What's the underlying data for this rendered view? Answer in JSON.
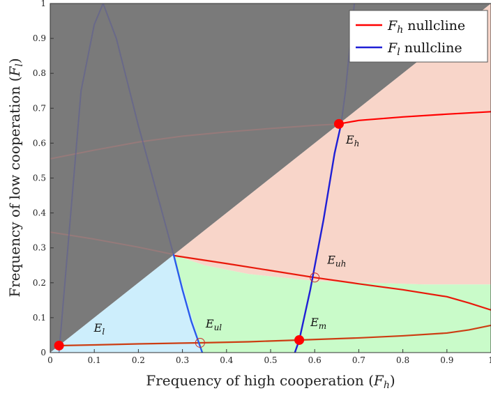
{
  "chart_data": {
    "type": "line",
    "xlabel": "Frequency of high cooperation (F_h)",
    "ylabel": "Frequency of low cooperation (F_l)",
    "xlim": [
      0,
      1
    ],
    "ylim": [
      0,
      1
    ],
    "xticks": [
      "0",
      "0.1",
      "0.2",
      "0.3",
      "0.4",
      "0.5",
      "0.6",
      "0.7",
      "0.8",
      "0.9",
      "1"
    ],
    "yticks": [
      "0",
      "0.1",
      "0.2",
      "0.3",
      "0.4",
      "0.5",
      "0.6",
      "0.7",
      "0.8",
      "0.9",
      "1"
    ],
    "grid": false,
    "legend_position": "top-right",
    "legend": [
      {
        "label": "F_h nullcline",
        "color": "#ff0000"
      },
      {
        "label": "F_l nullcline",
        "color": "#1f1fd6"
      }
    ],
    "regions": [
      {
        "color": "#7a7a7a",
        "points": [
          [
            0,
            0
          ],
          [
            0,
            1
          ],
          [
            1,
            1
          ]
        ]
      },
      {
        "color": "#f8d5c9",
        "points": [
          [
            0.28,
            0.28
          ],
          [
            1,
            1
          ],
          [
            1,
            0.195
          ],
          [
            0.85,
            0.195
          ],
          [
            0.6,
            0.205
          ],
          [
            0.45,
            0.225
          ],
          [
            0.35,
            0.25
          ]
        ]
      },
      {
        "color": "#cdeefc",
        "points": [
          [
            0,
            0
          ],
          [
            0.28,
            0.28
          ],
          [
            0.345,
            0
          ]
        ]
      },
      {
        "color": "#c9fbc9",
        "points": [
          [
            0.28,
            0.28
          ],
          [
            0.35,
            0.25
          ],
          [
            0.45,
            0.225
          ],
          [
            0.6,
            0.205
          ],
          [
            0.85,
            0.195
          ],
          [
            1,
            0.195
          ],
          [
            1,
            0
          ],
          [
            0.345,
            0
          ]
        ]
      }
    ],
    "series": [
      {
        "role": "Fh-upper-hidden",
        "color": "#a87a7a",
        "opacity": 0.6,
        "width": 2,
        "x": [
          0,
          0.1,
          0.2,
          0.3,
          0.4,
          0.5,
          0.6,
          0.66
        ],
        "y": [
          0.555,
          0.58,
          0.603,
          0.62,
          0.632,
          0.642,
          0.651,
          0.655
        ]
      },
      {
        "role": "Fh-upper",
        "color": "#ff0000",
        "opacity": 1,
        "width": 2.2,
        "x": [
          0.655,
          0.7,
          0.8,
          0.9,
          1.0
        ],
        "y": [
          0.655,
          0.665,
          0.675,
          0.683,
          0.69
        ]
      },
      {
        "role": "Fh-middle-hidden",
        "color": "#a87a7a",
        "opacity": 0.6,
        "width": 2,
        "x": [
          0,
          0.1,
          0.2,
          0.28
        ],
        "y": [
          0.345,
          0.325,
          0.302,
          0.281
        ]
      },
      {
        "role": "Fh-middle",
        "color": "#e8190a",
        "opacity": 1,
        "width": 2.2,
        "x": [
          0.28,
          0.4,
          0.5,
          0.6,
          0.7,
          0.8,
          0.9,
          0.95,
          1.0
        ],
        "y": [
          0.278,
          0.255,
          0.235,
          0.215,
          0.197,
          0.18,
          0.16,
          0.142,
          0.122
        ]
      },
      {
        "role": "Fh-lower",
        "color": "#cc3d12",
        "opacity": 1,
        "width": 2.2,
        "x": [
          0.02,
          0.1,
          0.2,
          0.34,
          0.45,
          0.565,
          0.7,
          0.8,
          0.9,
          0.95,
          1.0
        ],
        "y": [
          0.02,
          0.022,
          0.025,
          0.028,
          0.031,
          0.036,
          0.042,
          0.048,
          0.056,
          0.065,
          0.078
        ]
      },
      {
        "role": "Fl-left-hidden",
        "color": "#5e5e92",
        "opacity": 0.6,
        "width": 2,
        "x": [
          0.02,
          0.03,
          0.05,
          0.07,
          0.1,
          0.12,
          0.15,
          0.2,
          0.25,
          0.28
        ],
        "y": [
          0.0,
          0.15,
          0.45,
          0.75,
          0.94,
          1.0,
          0.9,
          0.65,
          0.42,
          0.28
        ]
      },
      {
        "role": "Fl-left",
        "color": "#2a5bea",
        "opacity": 1,
        "width": 2.4,
        "x": [
          0.28,
          0.3,
          0.32,
          0.345
        ],
        "y": [
          0.28,
          0.18,
          0.09,
          0.0
        ]
      },
      {
        "role": "Fl-right",
        "color": "#1f1fd6",
        "opacity": 1,
        "width": 2.4,
        "x": [
          0.555,
          0.565,
          0.59,
          0.62,
          0.645,
          0.66
        ],
        "y": [
          0.0,
          0.036,
          0.18,
          0.38,
          0.57,
          0.655
        ]
      },
      {
        "role": "Fl-right-hidden",
        "color": "#5e5e92",
        "opacity": 0.6,
        "width": 2,
        "x": [
          0.66,
          0.67,
          0.68,
          0.69
        ],
        "y": [
          0.655,
          0.75,
          0.88,
          1.0
        ]
      }
    ],
    "equilibria": [
      {
        "label": "E_h",
        "x": 0.655,
        "y": 0.655,
        "stable": true
      },
      {
        "label": "E_uh",
        "x": 0.6,
        "y": 0.215,
        "stable": false
      },
      {
        "label": "E_m",
        "x": 0.565,
        "y": 0.036,
        "stable": true
      },
      {
        "label": "E_ul",
        "x": 0.34,
        "y": 0.028,
        "stable": false
      },
      {
        "label": "E_l",
        "x": 0.02,
        "y": 0.02,
        "stable": true
      }
    ]
  }
}
